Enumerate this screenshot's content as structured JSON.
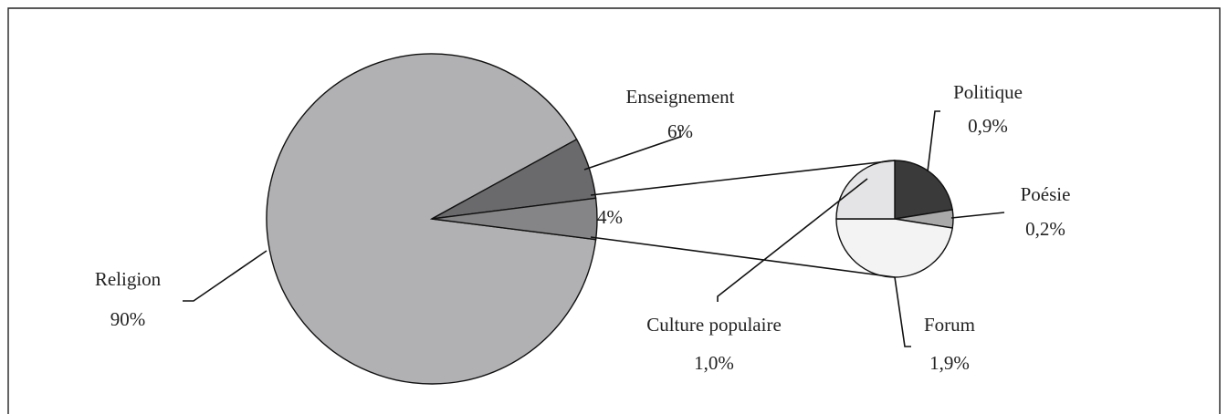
{
  "chart_data": {
    "type": "pie-of-pie",
    "categories": [
      "Religion",
      "Enseignement",
      null
    ],
    "values": [
      90,
      6,
      4
    ],
    "value_labels": [
      "90%",
      "6%",
      "4%"
    ],
    "colors": [
      "#b1b1b4",
      "#6a6a6d",
      "#858587"
    ],
    "secondary": {
      "categories": [
        "Politique",
        "Poésie",
        "Forum",
        "Culture populaire"
      ],
      "values": [
        0.9,
        0.2,
        1.9,
        1.0
      ],
      "value_labels": [
        "0,9%",
        "0,2%",
        "1,9%",
        "1,0%"
      ],
      "colors": [
        "#3a3a3a",
        "#a9a9a9",
        "#f3f3f3",
        "#e4e4e6"
      ]
    }
  }
}
